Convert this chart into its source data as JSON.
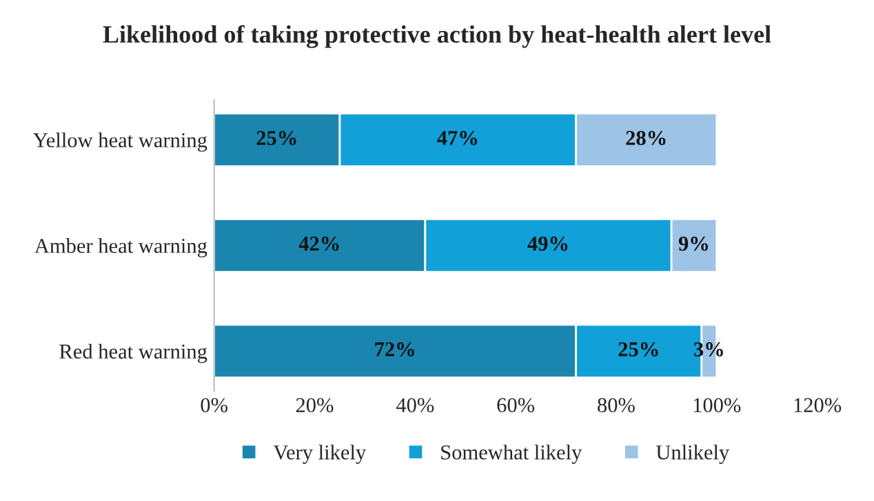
{
  "chart_data": {
    "type": "bar",
    "orientation": "horizontal",
    "stacked": true,
    "title": "Likelihood of taking protective action by heat-health alert level",
    "categories": [
      "Yellow heat warning",
      "Amber heat warning",
      "Red heat warning"
    ],
    "series": [
      {
        "name": "Very likely",
        "color": "#1a86b0",
        "values": [
          25,
          42,
          72
        ],
        "value_labels": [
          "25%",
          "42%",
          "72%"
        ]
      },
      {
        "name": "Somewhat likely",
        "color": "#12a0d8",
        "values": [
          47,
          49,
          25
        ],
        "value_labels": [
          "47%",
          "49%",
          "25%"
        ]
      },
      {
        "name": "Unlikely",
        "color": "#9dc3e6",
        "values": [
          28,
          9,
          3
        ],
        "value_labels": [
          "28%",
          "9%",
          "3%"
        ]
      }
    ],
    "xlim": [
      0,
      120
    ],
    "xticks": [
      {
        "value": 0,
        "label": "0%"
      },
      {
        "value": 20,
        "label": "20%"
      },
      {
        "value": 40,
        "label": "40%"
      },
      {
        "value": 60,
        "label": "60%"
      },
      {
        "value": 80,
        "label": "80%"
      },
      {
        "value": 100,
        "label": "100%"
      },
      {
        "value": 120,
        "label": "120%"
      }
    ],
    "legend": "bottom",
    "grid": false
  }
}
